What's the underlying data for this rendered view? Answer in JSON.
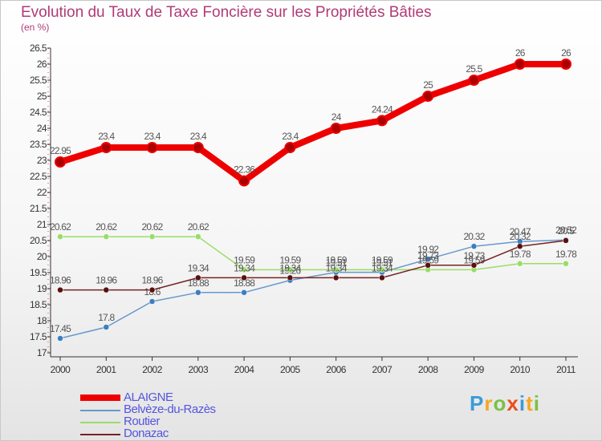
{
  "chart_data": {
    "type": "line",
    "title": "Evolution du Taux de Taxe Foncière sur les Propriétés Bâties",
    "ylabel": "(en %)",
    "xlabel": "",
    "x": [
      "2000",
      "2001",
      "2002",
      "2003",
      "2004",
      "2005",
      "2006",
      "2007",
      "2008",
      "2009",
      "2010",
      "2011"
    ],
    "ylim": [
      17,
      26.5
    ],
    "yticks": [
      "17",
      "17.5",
      "18",
      "18.5",
      "19",
      "19.5",
      "20",
      "20.5",
      "21",
      "21.5",
      "22",
      "22.5",
      "23",
      "23.5",
      "24",
      "24.5",
      "25",
      "25.5",
      "26",
      "26.5"
    ],
    "series": [
      {
        "name": "ALAIGNE",
        "color": "#ee0000",
        "values": [
          22.95,
          23.4,
          23.4,
          23.4,
          22.36,
          23.4,
          24,
          24.24,
          25,
          25.5,
          26,
          26
        ],
        "labels": [
          "22.95",
          "23.4",
          "23.4",
          "23.4",
          "22.36",
          "23.4",
          "24",
          "24.24",
          "25",
          "25.5",
          "26",
          "26"
        ]
      },
      {
        "name": "Belvèze-du-Razès",
        "color": "#6699cc",
        "values": [
          17.45,
          17.8,
          18.6,
          18.88,
          18.88,
          19.26,
          19.51,
          19.51,
          19.92,
          20.32,
          20.47,
          20.52
        ],
        "labels": [
          "17.45",
          "17.8",
          "18.6",
          "18.88",
          "18.88",
          "19.26",
          "19.51",
          "19.51",
          "19.92",
          "20.32",
          "20.47",
          "20.52"
        ]
      },
      {
        "name": "Routier",
        "color": "#99dd66",
        "values": [
          20.62,
          20.62,
          20.62,
          20.62,
          19.59,
          19.59,
          19.59,
          19.59,
          19.59,
          19.59,
          19.78,
          19.78
        ],
        "labels": [
          "20.62",
          "20.62",
          "20.62",
          "20.62",
          "19.59",
          "19.59",
          "19.59",
          "19.59",
          "19.59",
          "19.59",
          "19.78",
          "19.78"
        ]
      },
      {
        "name": "Donazac",
        "color": "#772222",
        "values": [
          18.96,
          18.96,
          18.96,
          19.34,
          19.34,
          19.34,
          19.34,
          19.34,
          19.73,
          19.73,
          20.32,
          20.5
        ],
        "labels": [
          "18.96",
          "18.96",
          "18.96",
          "19.34",
          "19.34",
          "19.34",
          "19.34",
          "19.34",
          "19.73",
          "19.73",
          "20.32",
          "20.5"
        ]
      }
    ],
    "legend_position": "bottom-left",
    "grid": false
  },
  "brand": {
    "letters": [
      "P",
      "r",
      "o",
      "x",
      "i",
      "t",
      "i"
    ],
    "colors": [
      "#3a9bd9",
      "#f5a623",
      "#7ac143",
      "#e94e1b",
      "#3a9bd9",
      "#f5a623",
      "#7ac143"
    ]
  }
}
